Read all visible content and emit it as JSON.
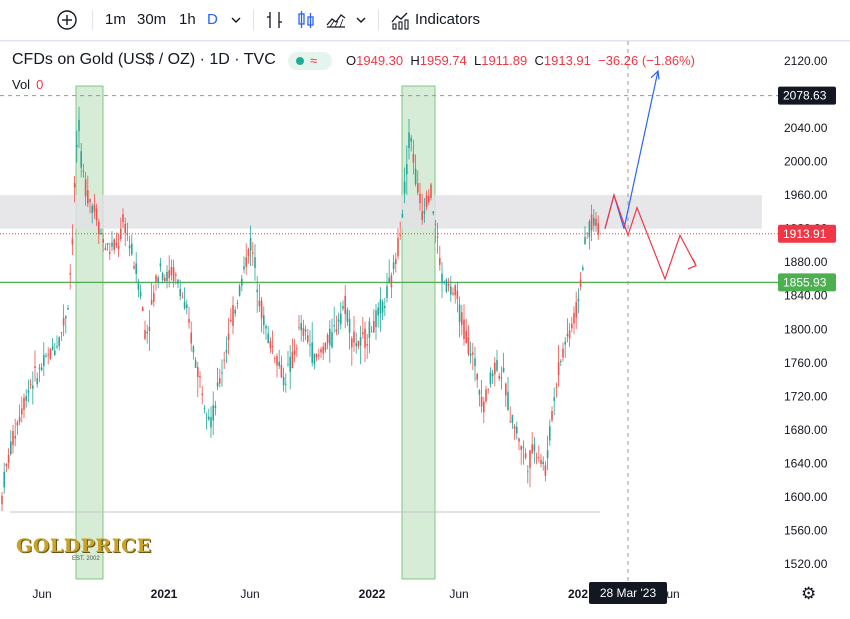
{
  "toolbar": {
    "intervals": [
      "1m",
      "30m",
      "1h",
      "D"
    ],
    "indicators_label": "Indicators",
    "icons": [
      "add-symbol-icon",
      "chevron-down-icon",
      "compare-icon",
      "candles-icon",
      "area-chart-icon",
      "indicators-icon"
    ]
  },
  "legend": {
    "title": "CFDs on Gold (US$ / OZ) · 1D · TVC",
    "o_label": "O",
    "o": "1949.30",
    "h_label": "H",
    "h": "1959.74",
    "l_label": "L",
    "l": "1911.89",
    "c_label": "C",
    "c": "1913.91",
    "change": "−36.26 (−1.86%)",
    "vol_label": "Vol",
    "vol": "0"
  },
  "watermark": {
    "text": "GOLDPRICE",
    "sub": "EST. 2002"
  },
  "crosshair": {
    "price": "2078.63",
    "date": "28 Mar '23"
  },
  "price_tags": {
    "last": "1913.91",
    "support": "1855.93"
  },
  "colors": {
    "up": "#26a69a",
    "down": "#ef5350",
    "last_tag": "#f23645",
    "support": "#4caf50",
    "zone": "#e1e1e5",
    "shade": "#c8e6c9",
    "projection_up": "#2962ff",
    "projection_down": "#f23645",
    "tag_dark": "#131722"
  },
  "chart_data": {
    "type": "candlestick",
    "title": "CFDs on Gold (US$ / OZ) · 1D · TVC",
    "y_ticks": [
      "2120.00",
      "2080.00",
      "2040.00",
      "2000.00",
      "1960.00",
      "1920.00",
      "1880.00",
      "1840.00",
      "1800.00",
      "1760.00",
      "1720.00",
      "1680.00",
      "1640.00",
      "1600.00",
      "1560.00",
      "1520.00"
    ],
    "x_ticks": [
      "Jun",
      "2021",
      "Jun",
      "2022",
      "Jun",
      "202",
      "Jun"
    ],
    "ylim": [
      1505,
      2125
    ],
    "path_points": [
      [
        0,
        1580
      ],
      [
        4,
        1620
      ],
      [
        10,
        1655
      ],
      [
        20,
        1700
      ],
      [
        30,
        1735
      ],
      [
        40,
        1750
      ],
      [
        50,
        1770
      ],
      [
        60,
        1790
      ],
      [
        68,
        1830
      ],
      [
        72,
        1900
      ],
      [
        78,
        2050
      ],
      [
        82,
        1990
      ],
      [
        88,
        1960
      ],
      [
        96,
        1940
      ],
      [
        104,
        1900
      ],
      [
        110,
        1895
      ],
      [
        118,
        1900
      ],
      [
        124,
        1930
      ],
      [
        132,
        1890
      ],
      [
        140,
        1850
      ],
      [
        146,
        1790
      ],
      [
        152,
        1830
      ],
      [
        160,
        1880
      ],
      [
        166,
        1860
      ],
      [
        172,
        1870
      ],
      [
        180,
        1850
      ],
      [
        188,
        1810
      ],
      [
        196,
        1760
      ],
      [
        204,
        1720
      ],
      [
        212,
        1690
      ],
      [
        220,
        1740
      ],
      [
        228,
        1790
      ],
      [
        236,
        1830
      ],
      [
        244,
        1870
      ],
      [
        250,
        1905
      ],
      [
        256,
        1870
      ],
      [
        262,
        1820
      ],
      [
        268,
        1790
      ],
      [
        276,
        1770
      ],
      [
        284,
        1740
      ],
      [
        292,
        1760
      ],
      [
        300,
        1800
      ],
      [
        308,
        1790
      ],
      [
        316,
        1760
      ],
      [
        324,
        1780
      ],
      [
        332,
        1790
      ],
      [
        340,
        1820
      ],
      [
        346,
        1830
      ],
      [
        352,
        1790
      ],
      [
        360,
        1780
      ],
      [
        368,
        1795
      ],
      [
        376,
        1810
      ],
      [
        384,
        1830
      ],
      [
        392,
        1860
      ],
      [
        398,
        1900
      ],
      [
        404,
        1960
      ],
      [
        410,
        2040
      ],
      [
        416,
        1980
      ],
      [
        422,
        1940
      ],
      [
        430,
        1970
      ],
      [
        436,
        1920
      ],
      [
        442,
        1860
      ],
      [
        448,
        1850
      ],
      [
        456,
        1840
      ],
      [
        464,
        1800
      ],
      [
        472,
        1770
      ],
      [
        478,
        1740
      ],
      [
        484,
        1710
      ],
      [
        490,
        1740
      ],
      [
        496,
        1760
      ],
      [
        504,
        1740
      ],
      [
        510,
        1700
      ],
      [
        516,
        1680
      ],
      [
        522,
        1660
      ],
      [
        528,
        1640
      ],
      [
        534,
        1660
      ],
      [
        540,
        1650
      ],
      [
        546,
        1630
      ],
      [
        552,
        1700
      ],
      [
        558,
        1750
      ],
      [
        564,
        1780
      ],
      [
        570,
        1800
      ],
      [
        576,
        1820
      ],
      [
        582,
        1870
      ],
      [
        588,
        1920
      ],
      [
        594,
        1930
      ],
      [
        600,
        1915
      ]
    ],
    "highlight_zone": [
      1920,
      1960
    ],
    "support_level": 1855.93,
    "crosshair_price": 2078.63,
    "last_price": 1913.91,
    "shaded_periods": [
      "late Jul – early Sep 2020",
      "early Mar – early Apr 2022"
    ],
    "projection_up": [
      [
        1913.91,
        "1 Feb"
      ],
      [
        1920,
        "6 Feb"
      ],
      [
        1960,
        "20 Feb"
      ],
      [
        1920,
        "6 Mar"
      ],
      [
        2110,
        "4 Apr"
      ]
    ],
    "projection_down": [
      [
        1920,
        "6 Feb"
      ],
      [
        1960,
        "20 Feb"
      ],
      [
        1920,
        "6 Mar"
      ],
      [
        1950,
        "15 Mar"
      ],
      [
        1860,
        "6 Apr"
      ],
      [
        1910,
        "20 Apr"
      ],
      [
        1875,
        "1 May"
      ]
    ]
  }
}
